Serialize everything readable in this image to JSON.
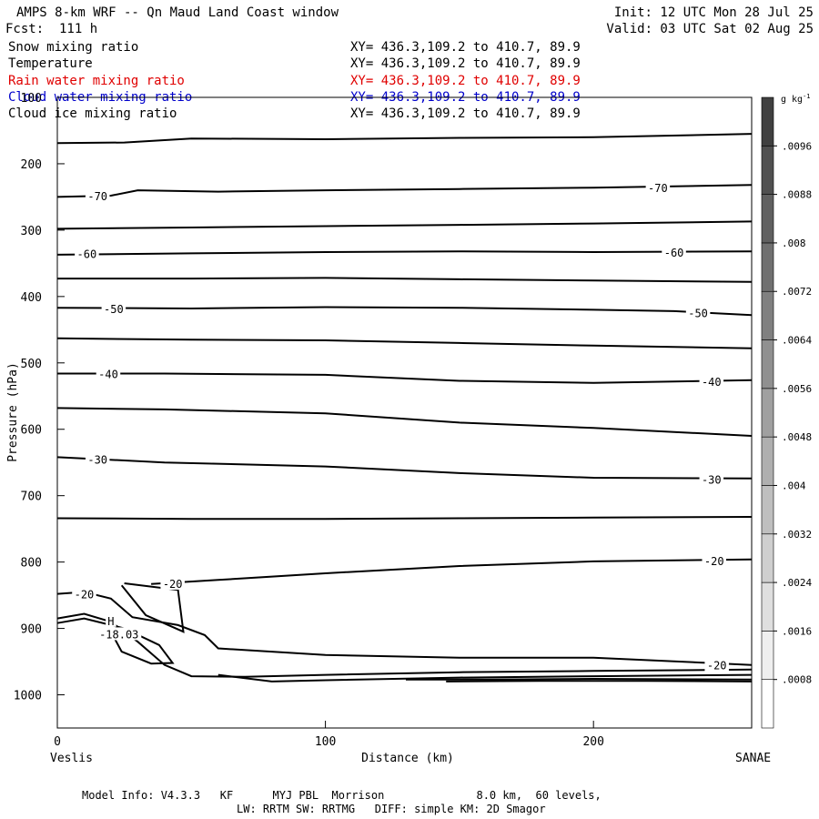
{
  "header": {
    "title": "AMPS 8-km WRF -- Qn Maud Land Coast window",
    "init": "Init: 12 UTC Mon 28 Jul 25",
    "fcst": "Fcst:  111 h",
    "valid": "Valid: 03 UTC Sat 02 Aug 25"
  },
  "fields": [
    {
      "name": "Snow mixing ratio",
      "xy": "XY= 436.3,109.2 to 410.7, 89.9",
      "color": "#000000"
    },
    {
      "name": "Temperature",
      "xy": "XY= 436.3,109.2 to 410.7, 89.9",
      "color": "#000000"
    },
    {
      "name": "Rain water mixing ratio",
      "xy": "XY= 436.3,109.2 to 410.7, 89.9",
      "color": "#e00000"
    },
    {
      "name": "Cloud water mixing ratio",
      "xy": "XY= 436.3,109.2 to 410.7, 89.9",
      "color": "#0000cc"
    },
    {
      "name": "Cloud ice mixing ratio",
      "xy": "XY= 436.3,109.2 to 410.7, 89.9",
      "color": "#000000"
    }
  ],
  "footer": {
    "line1": "Model Info: V4.3.3   KF      MYJ PBL  Morrison              8.0 km,  60 levels,",
    "line2": "LW: RRTM SW: RRTMG   DIFF: simple KM: 2D Smagor"
  },
  "chart_data": {
    "type": "line",
    "ylabel": "Pressure (hPa)",
    "xlabel": "Distance (km)",
    "x_left_label": "Veslis",
    "x_right_label": "SANAE",
    "xlim": [
      0,
      259
    ],
    "ylim": [
      1050,
      100
    ],
    "x_ticks": [
      0,
      100,
      200
    ],
    "y_ticks": [
      100,
      200,
      300,
      400,
      500,
      600,
      700,
      800,
      900,
      1000
    ],
    "colorbar": {
      "unit": "g kg",
      "unit_exponent": "-1",
      "min": 0,
      "max": 0.0104,
      "labels": [
        ".0008",
        ".0016",
        ".0024",
        ".0032",
        ".004",
        ".0048",
        ".0056",
        ".0064",
        ".0072",
        ".008",
        ".0088",
        ".0096"
      ]
    },
    "series": [
      {
        "x": [
          0,
          25,
          50,
          100,
          150,
          200,
          259
        ],
        "y": [
          169,
          168,
          162,
          163,
          161,
          160,
          155
        ]
      },
      {
        "x": [
          0,
          20,
          30,
          60,
          100,
          150,
          200,
          259
        ],
        "y": [
          250,
          248,
          240,
          242,
          240,
          238,
          236,
          232
        ]
      },
      {
        "x": [
          0,
          50,
          100,
          150,
          200,
          259
        ],
        "y": [
          298,
          296,
          294,
          292,
          290,
          287
        ]
      },
      {
        "x": [
          0,
          50,
          100,
          150,
          200,
          259
        ],
        "y": [
          337,
          335,
          333,
          332,
          333,
          332
        ]
      },
      {
        "x": [
          0,
          50,
          100,
          150,
          200,
          259
        ],
        "y": [
          373,
          373,
          372,
          374,
          376,
          378
        ]
      },
      {
        "x": [
          0,
          50,
          100,
          150,
          200,
          230,
          259
        ],
        "y": [
          417,
          418,
          416,
          417,
          420,
          422,
          428
        ]
      },
      {
        "x": [
          0,
          50,
          100,
          150,
          200,
          259
        ],
        "y": [
          463,
          465,
          466,
          470,
          474,
          478
        ]
      },
      {
        "x": [
          0,
          40,
          100,
          150,
          200,
          259
        ],
        "y": [
          516,
          516,
          518,
          527,
          530,
          526
        ]
      },
      {
        "x": [
          0,
          40,
          100,
          150,
          200,
          259
        ],
        "y": [
          568,
          570,
          576,
          590,
          598,
          610
        ]
      },
      {
        "x": [
          0,
          40,
          100,
          150,
          200,
          259
        ],
        "y": [
          642,
          650,
          656,
          666,
          673,
          674
        ]
      },
      {
        "x": [
          0,
          50,
          100,
          150,
          200,
          259
        ],
        "y": [
          734,
          735,
          735,
          734,
          733,
          732
        ]
      },
      {
        "x": [
          35,
          60,
          100,
          150,
          200,
          259
        ],
        "y": [
          833,
          827,
          817,
          806,
          799,
          796
        ]
      },
      {
        "x": [
          0,
          10,
          20,
          28,
          45,
          55,
          60,
          100,
          150,
          200,
          259
        ],
        "y": [
          848,
          845,
          855,
          883,
          895,
          910,
          930,
          940,
          944,
          944,
          955
        ]
      },
      {
        "x": [
          0,
          10,
          20,
          30,
          40,
          50,
          70,
          100,
          150,
          200,
          259
        ],
        "y": [
          885,
          878,
          890,
          920,
          955,
          972,
          973,
          970,
          966,
          964,
          962
        ]
      },
      {
        "x": [
          0,
          10,
          20,
          25,
          38,
          43,
          35,
          24,
          20
        ],
        "y": [
          892,
          885,
          895,
          900,
          925,
          952,
          953,
          935,
          905
        ]
      },
      {
        "x": [
          60,
          80,
          100,
          150,
          200,
          259
        ],
        "y": [
          970,
          980,
          978,
          974,
          972,
          970
        ]
      },
      {
        "x": [
          130,
          160,
          200,
          259
        ],
        "y": [
          977,
          977,
          976,
          977
        ]
      },
      {
        "x": [
          145,
          180,
          220,
          259
        ],
        "y": [
          980,
          979,
          979,
          980
        ]
      },
      {
        "x": [
          25,
          45,
          47,
          33,
          24
        ],
        "y": [
          832,
          842,
          905,
          880,
          835
        ]
      }
    ],
    "contour_labels": [
      {
        "text": "-70",
        "x": 15,
        "y": 248
      },
      {
        "text": "-70",
        "x": 224,
        "y": 236
      },
      {
        "text": "-60",
        "x": 11,
        "y": 335
      },
      {
        "text": "-60",
        "x": 230,
        "y": 333
      },
      {
        "text": "-50",
        "x": 21,
        "y": 418
      },
      {
        "text": "-50",
        "x": 239,
        "y": 424
      },
      {
        "text": "-40",
        "x": 19,
        "y": 516
      },
      {
        "text": "-40",
        "x": 244,
        "y": 528
      },
      {
        "text": "-30",
        "x": 15,
        "y": 645
      },
      {
        "text": "-30",
        "x": 244,
        "y": 675
      },
      {
        "text": "-20",
        "x": 43,
        "y": 832
      },
      {
        "text": "-20",
        "x": 245,
        "y": 798
      },
      {
        "text": "-20",
        "x": 10,
        "y": 848
      },
      {
        "text": "-20",
        "x": 246,
        "y": 955
      },
      {
        "text": "H",
        "x": 20,
        "y": 888
      },
      {
        "text": "-18.03",
        "x": 23,
        "y": 908
      }
    ]
  }
}
